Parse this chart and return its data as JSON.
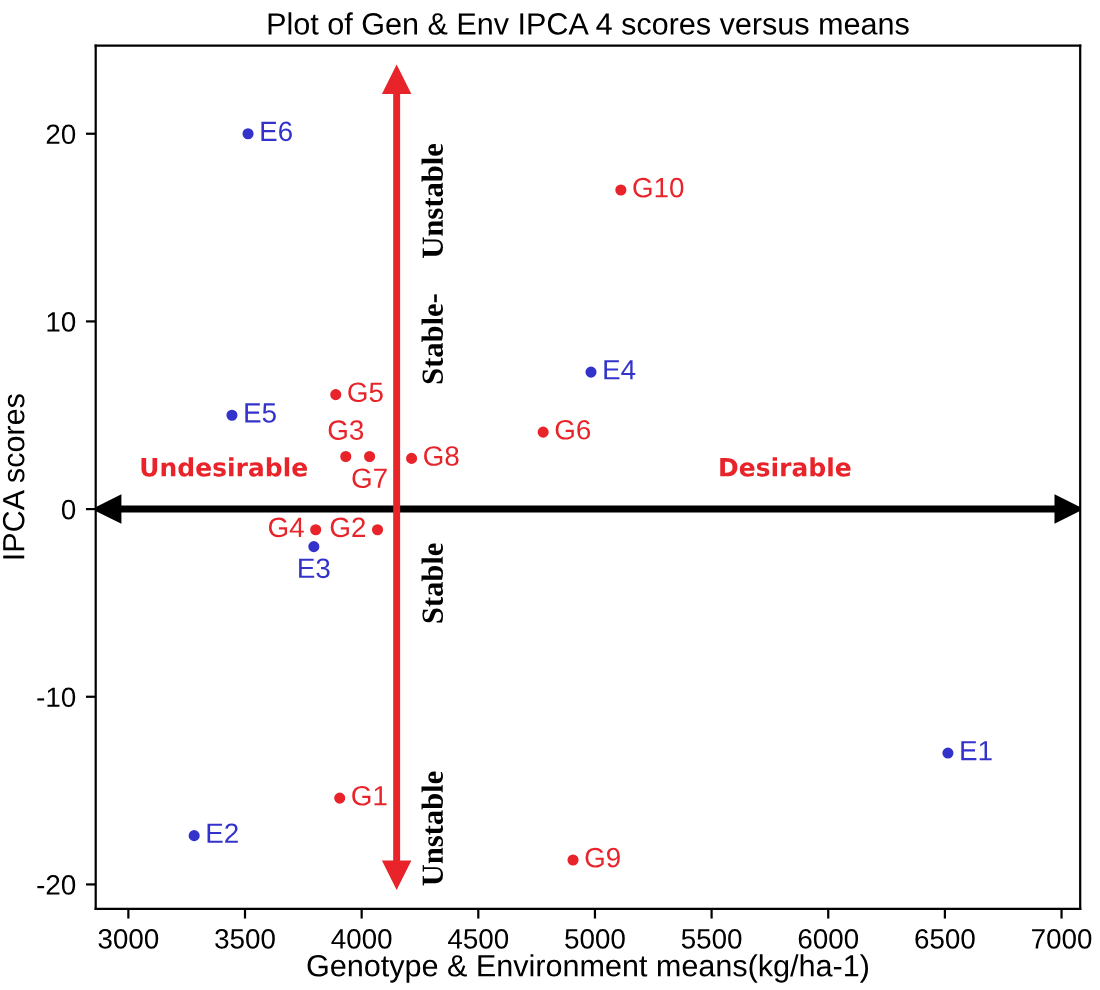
{
  "chart_data": {
    "type": "scatter",
    "title": "Plot of Gen & Env IPCA 4 scores versus means",
    "xlabel": "Genotype & Environment means(kg/ha-1)",
    "ylabel": "IPCA scores",
    "xlim": [
      2860,
      7080
    ],
    "ylim": [
      -21.3,
      24.7
    ],
    "xticks": [
      3000,
      3500,
      4000,
      4500,
      5000,
      5500,
      6000,
      6500,
      7000
    ],
    "yticks": [
      -20,
      -10,
      0,
      10,
      20
    ],
    "grid": false,
    "marker": "circle",
    "series": [
      {
        "color": "#e8242a",
        "x": [
          3906,
          4068,
          3932,
          3803,
          3889,
          4778,
          4034,
          4214,
          4906,
          5111
        ],
        "values": [
          -15.4,
          -1.1,
          2.8,
          -1.1,
          6.1,
          4.1,
          2.8,
          2.7,
          -18.7,
          17.0
        ],
        "value_labels": [
          "G1",
          "G2",
          "G3",
          "G4",
          "G5",
          "G6",
          "G7",
          "G8",
          "G9",
          "G10"
        ]
      },
      {
        "color": "#3333cc",
        "x": [
          6513,
          3282,
          3795,
          4983,
          3444,
          3513
        ],
        "values": [
          -13.0,
          -17.4,
          -2.0,
          7.3,
          5.0,
          20.0
        ],
        "value_labels": [
          "E1",
          "E2",
          "E3",
          "E4",
          "E5",
          "E6"
        ]
      }
    ],
    "ref_lines": [
      {
        "axis": "y",
        "value": 0,
        "color": "#000000"
      },
      {
        "axis": "x",
        "value": 4150,
        "color": "#e8242a"
      }
    ],
    "annotations": [
      "Undesirable",
      "Desirable",
      "Unstable",
      "Stable-",
      "Stable",
      "Unstable"
    ]
  }
}
